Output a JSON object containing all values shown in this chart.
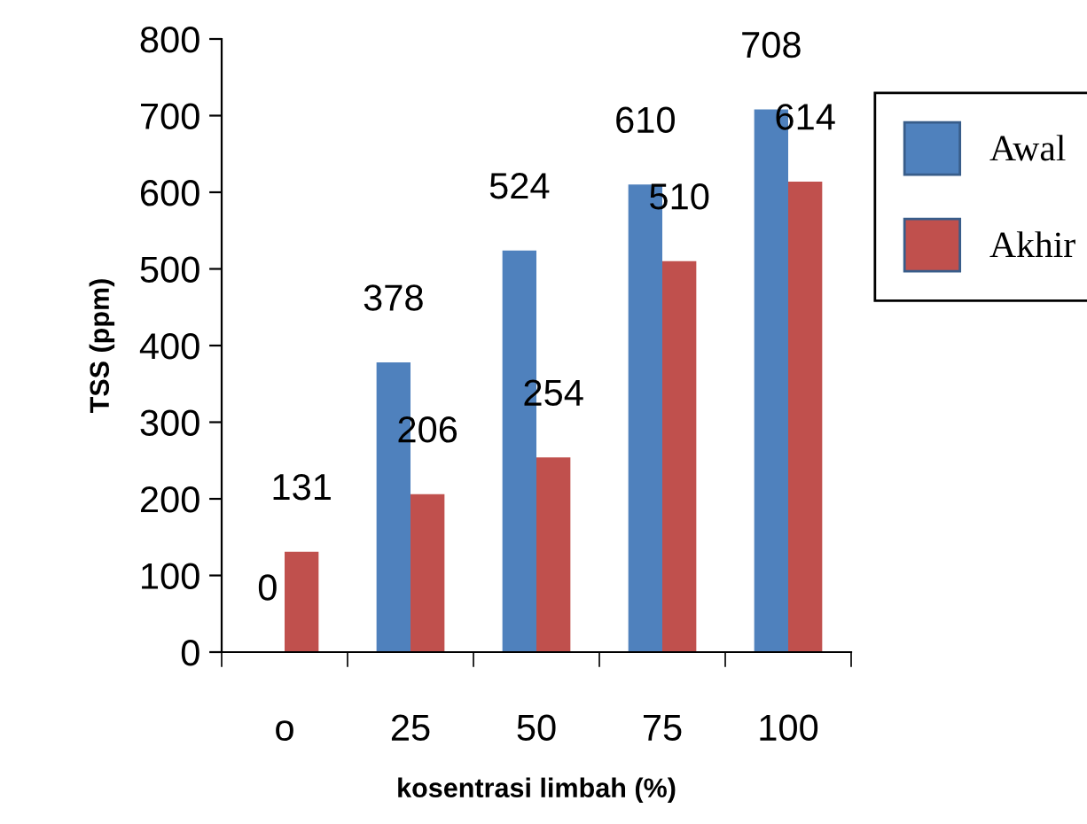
{
  "chart_data": {
    "type": "bar",
    "xlabel": "kosentrasi limbah (%)",
    "ylabel": "TSS (ppm)",
    "categories": [
      "o",
      "25",
      "50",
      "75",
      "100"
    ],
    "series": [
      {
        "name": "Awal",
        "color": "#4f81bd",
        "values": [
          0,
          378,
          524,
          610,
          708
        ]
      },
      {
        "name": "Akhir",
        "color": "#c0504d",
        "values": [
          131,
          206,
          254,
          510,
          614
        ]
      }
    ],
    "ylim": [
      0,
      800
    ],
    "yticks": [
      0,
      100,
      200,
      300,
      400,
      500,
      600,
      700,
      800
    ],
    "data_labels": true,
    "grid": false,
    "legend": "right"
  }
}
